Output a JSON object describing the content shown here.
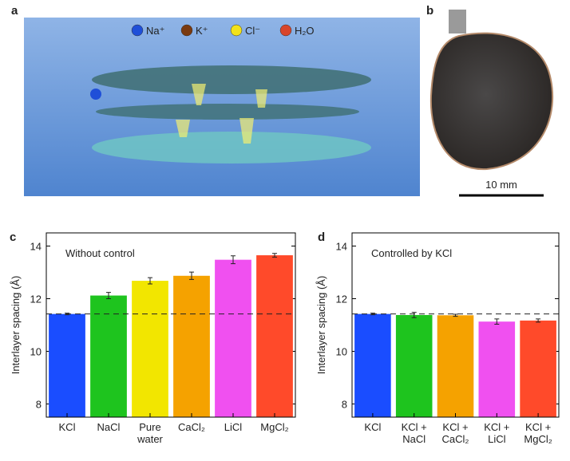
{
  "panel_labels": [
    "a",
    "b",
    "c",
    "d"
  ],
  "panel_a": {
    "legend": [
      "Na⁺",
      "K⁺",
      "Cl⁻",
      "H₂O"
    ],
    "legend_colors": [
      "#1f4fd8",
      "#7a3a10",
      "#f2e21a",
      "#d8452a"
    ]
  },
  "panel_b": {
    "scale_bar": "10 mm"
  },
  "chart_data": [
    {
      "type": "bar",
      "annotation": "Without control",
      "y_label": "Interlayer spacing (Å)",
      "categories": [
        "KCl",
        "NaCl",
        "Pure\nwater",
        "CaCl₂",
        "LiCl",
        "MgCl₂"
      ],
      "values": [
        11.42,
        12.12,
        12.68,
        12.87,
        13.48,
        13.65
      ],
      "errors": [
        0.03,
        0.12,
        0.12,
        0.14,
        0.15,
        0.07
      ],
      "colors": [
        "#1a4dff",
        "#1ec41e",
        "#f2e600",
        "#f5a200",
        "#f050f0",
        "#ff4a2a"
      ],
      "reference_line": 11.42,
      "ylim": [
        7.5,
        14.5
      ],
      "yticks": [
        8,
        10,
        12,
        14
      ]
    },
    {
      "type": "bar",
      "annotation": "Controlled by KCl",
      "y_label": "Interlayer spacing (Å)",
      "categories": [
        "KCl",
        "KCl +\nNaCl",
        "KCl +\nCaCl₂",
        "KCl +\nLiCl",
        "KCl +\nMgCl₂"
      ],
      "values": [
        11.42,
        11.38,
        11.37,
        11.13,
        11.17
      ],
      "errors": [
        0.03,
        0.1,
        0.04,
        0.1,
        0.06
      ],
      "colors": [
        "#1a4dff",
        "#1ec41e",
        "#f5a200",
        "#f050f0",
        "#ff4a2a"
      ],
      "reference_line": 11.42,
      "ylim": [
        7.5,
        14.5
      ],
      "yticks": [
        8,
        10,
        12,
        14
      ]
    }
  ]
}
